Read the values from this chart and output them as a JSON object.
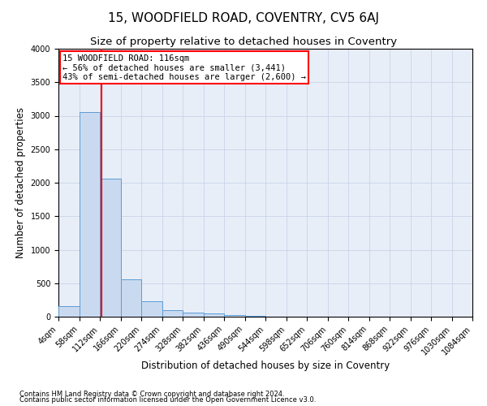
{
  "title": "15, WOODFIELD ROAD, COVENTRY, CV5 6AJ",
  "subtitle": "Size of property relative to detached houses in Coventry",
  "xlabel": "Distribution of detached houses by size in Coventry",
  "ylabel": "Number of detached properties",
  "footnote1": "Contains HM Land Registry data © Crown copyright and database right 2024.",
  "footnote2": "Contains public sector information licensed under the Open Government Licence v3.0.",
  "property_size": 116,
  "annotation_title": "15 WOODFIELD ROAD: 116sqm",
  "annotation_line1": "← 56% of detached houses are smaller (3,441)",
  "annotation_line2": "43% of semi-detached houses are larger (2,600) →",
  "bar_color": "#c9daf0",
  "bar_edge_color": "#5b9bd5",
  "vline_color": "red",
  "annotation_box_color": "red",
  "bin_edges": [
    4,
    58,
    112,
    166,
    220,
    274,
    328,
    382,
    436,
    490,
    544,
    598,
    652,
    706,
    760,
    814,
    868,
    922,
    976,
    1030,
    1084
  ],
  "bar_heights": [
    155,
    3060,
    2060,
    555,
    230,
    100,
    65,
    50,
    20,
    10,
    5,
    3,
    2,
    2,
    1,
    1,
    1,
    1,
    1,
    1
  ],
  "ylim": [
    0,
    4000
  ],
  "xlim": [
    4,
    1084
  ],
  "grid_color": "#c8d4e8",
  "background_color": "#e8eef8",
  "title_fontsize": 11,
  "subtitle_fontsize": 9.5,
  "xlabel_fontsize": 8.5,
  "ylabel_fontsize": 8.5,
  "annotation_fontsize": 7.5,
  "tick_fontsize": 7,
  "footnote_fontsize": 6
}
